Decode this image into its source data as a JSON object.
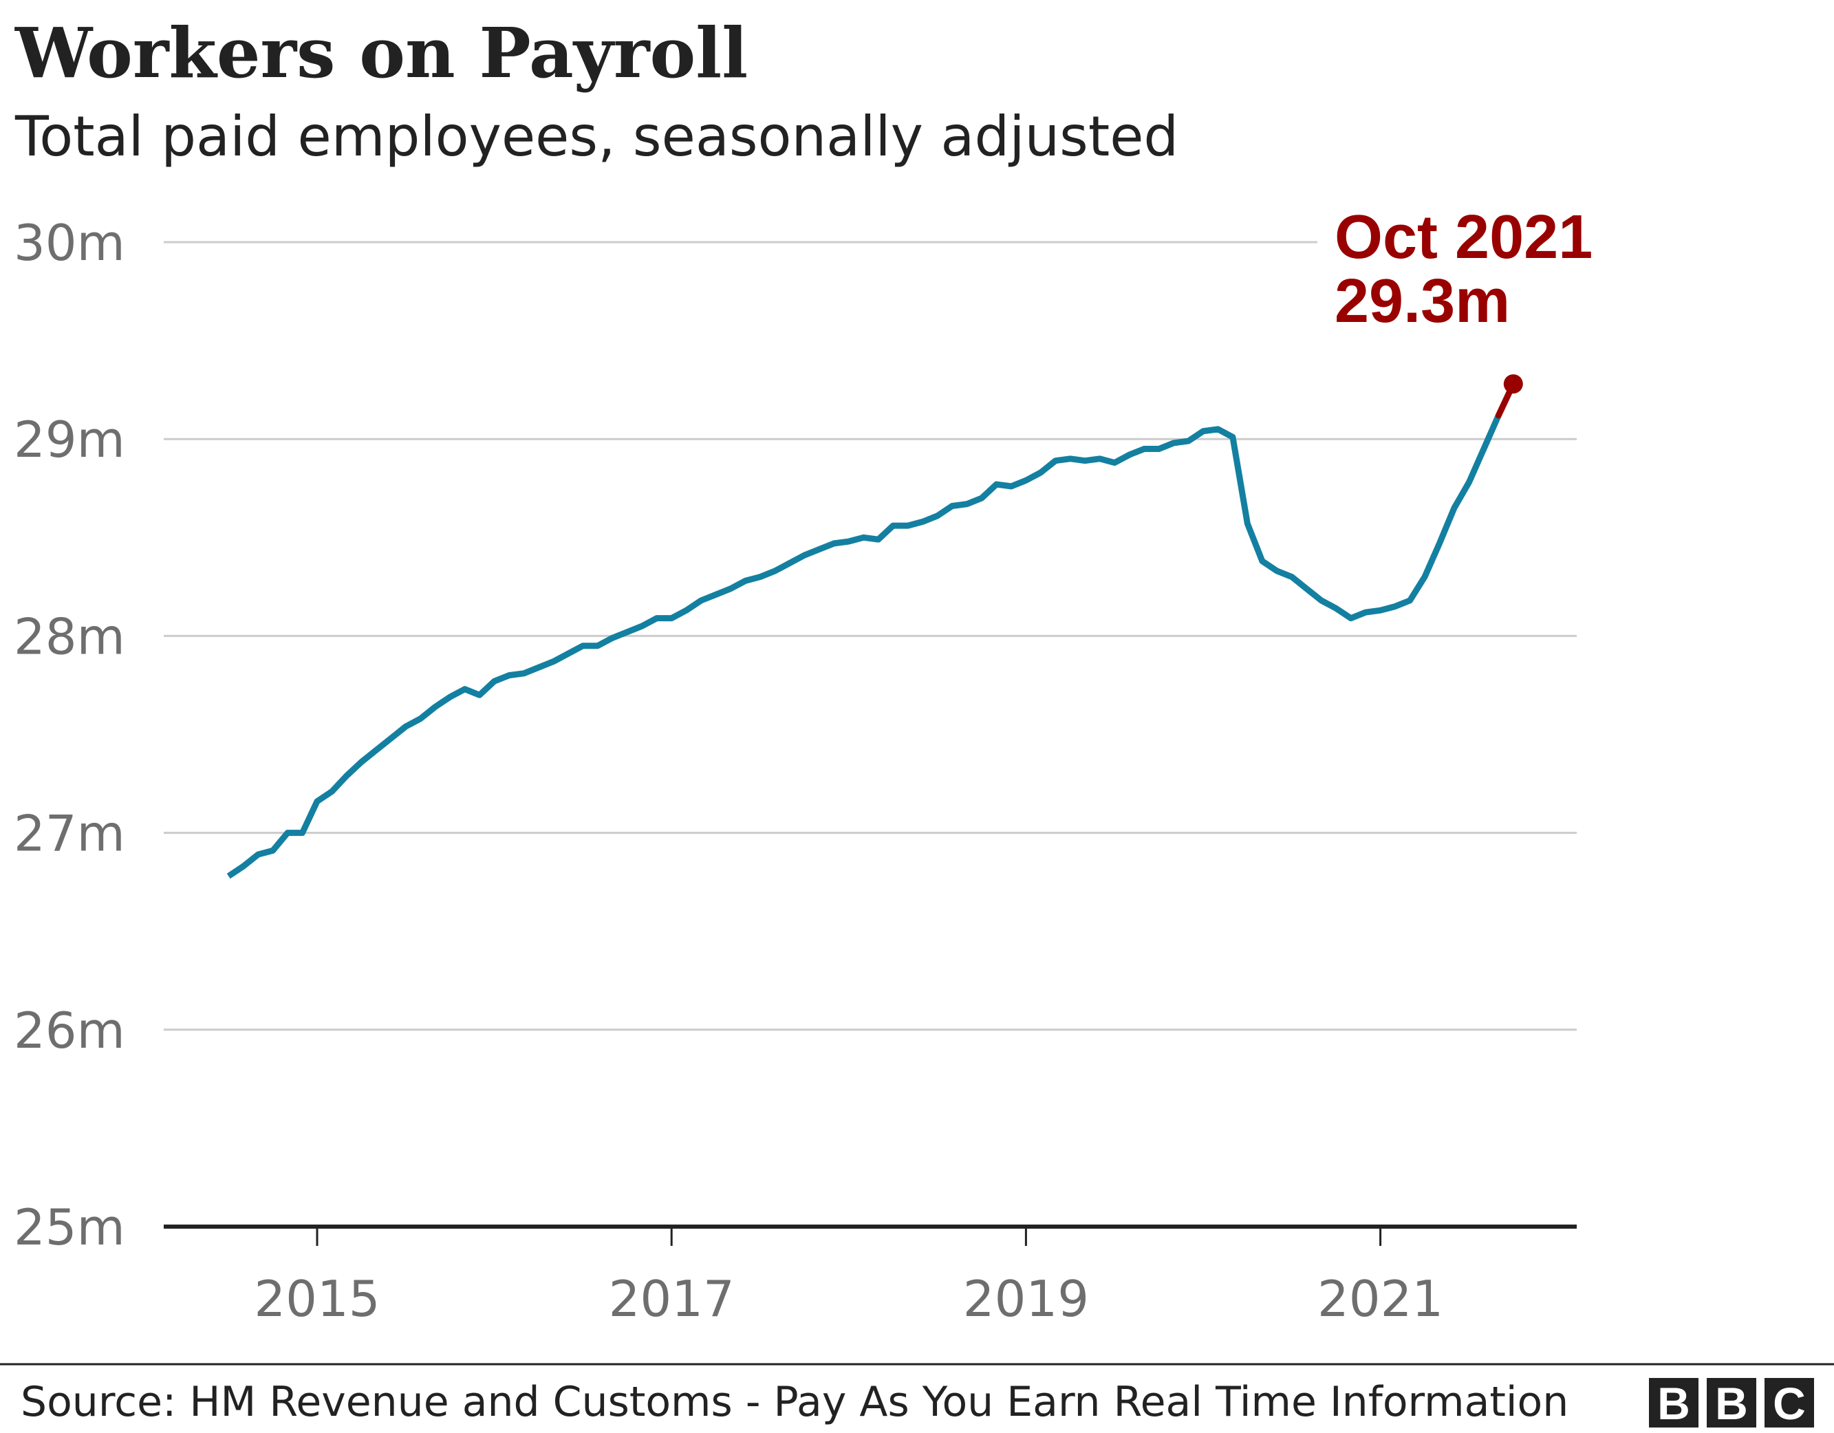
{
  "chart_data": {
    "type": "line",
    "title": "Workers on Payroll",
    "subtitle": "Total paid employees, seasonally adjusted",
    "xlabel": "",
    "ylabel": "",
    "ylim": [
      25,
      30
    ],
    "xlim": [
      "2014-03",
      "2022-03"
    ],
    "y_ticks": [
      25,
      26,
      27,
      28,
      29,
      30
    ],
    "y_tick_labels": [
      "25m",
      "26m",
      "27m",
      "28m",
      "29m",
      "30m"
    ],
    "x_ticks": [
      2015,
      2017,
      2019,
      2021
    ],
    "x_tick_labels": [
      "2015",
      "2017",
      "2019",
      "2021"
    ],
    "grid": "horizontal",
    "unit": "millions",
    "series": [
      {
        "color": "#1380A1",
        "highlight_color": "#990000",
        "x": [
          "2014-07",
          "2014-08",
          "2014-09",
          "2014-10",
          "2014-11",
          "2014-12",
          "2015-01",
          "2015-02",
          "2015-03",
          "2015-04",
          "2015-05",
          "2015-06",
          "2015-07",
          "2015-08",
          "2015-09",
          "2015-10",
          "2015-11",
          "2015-12",
          "2016-01",
          "2016-02",
          "2016-03",
          "2016-04",
          "2016-05",
          "2016-06",
          "2016-07",
          "2016-08",
          "2016-09",
          "2016-10",
          "2016-11",
          "2016-12",
          "2017-01",
          "2017-02",
          "2017-03",
          "2017-04",
          "2017-05",
          "2017-06",
          "2017-07",
          "2017-08",
          "2017-09",
          "2017-10",
          "2017-11",
          "2017-12",
          "2018-01",
          "2018-02",
          "2018-03",
          "2018-04",
          "2018-05",
          "2018-06",
          "2018-07",
          "2018-08",
          "2018-09",
          "2018-10",
          "2018-11",
          "2018-12",
          "2019-01",
          "2019-02",
          "2019-03",
          "2019-04",
          "2019-05",
          "2019-06",
          "2019-07",
          "2019-08",
          "2019-09",
          "2019-10",
          "2019-11",
          "2019-12",
          "2020-01",
          "2020-02",
          "2020-03",
          "2020-04",
          "2020-05",
          "2020-06",
          "2020-07",
          "2020-08",
          "2020-09",
          "2020-10",
          "2020-11",
          "2020-12",
          "2021-01",
          "2021-02",
          "2021-03",
          "2021-04",
          "2021-05",
          "2021-06",
          "2021-07",
          "2021-08",
          "2021-09",
          "2021-10"
        ],
        "values": [
          26.78,
          26.83,
          26.89,
          26.91,
          27.0,
          27.0,
          27.16,
          27.21,
          27.29,
          27.36,
          27.42,
          27.48,
          27.54,
          27.58,
          27.64,
          27.69,
          27.73,
          27.7,
          27.77,
          27.8,
          27.81,
          27.84,
          27.87,
          27.91,
          27.95,
          27.95,
          27.99,
          28.02,
          28.05,
          28.09,
          28.09,
          28.13,
          28.18,
          28.21,
          28.24,
          28.28,
          28.3,
          28.33,
          28.37,
          28.41,
          28.44,
          28.47,
          28.48,
          28.5,
          28.49,
          28.56,
          28.56,
          28.58,
          28.61,
          28.66,
          28.67,
          28.7,
          28.77,
          28.76,
          28.79,
          28.83,
          28.89,
          28.9,
          28.89,
          28.9,
          28.88,
          28.92,
          28.95,
          28.95,
          28.98,
          28.99,
          29.04,
          29.05,
          29.01,
          28.57,
          28.38,
          28.33,
          28.3,
          28.24,
          28.18,
          28.14,
          28.09,
          28.12,
          28.13,
          28.15,
          28.18,
          28.3,
          28.47,
          28.65,
          28.78,
          28.95,
          29.12,
          29.28
        ]
      }
    ],
    "annotation": {
      "line1": "Oct 2021",
      "line2": "29.3m"
    }
  },
  "footer": {
    "source": "Source: HM Revenue and Customs - Pay As You Earn Real Time Information",
    "logo": [
      "B",
      "B",
      "C"
    ]
  }
}
